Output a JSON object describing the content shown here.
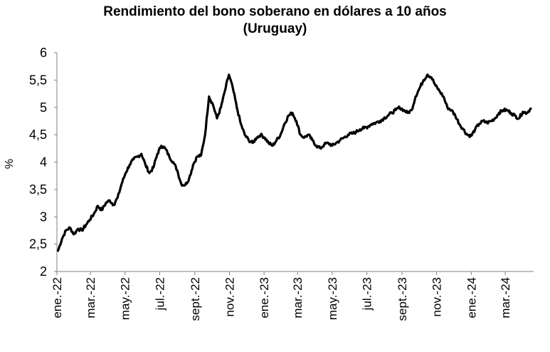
{
  "chart_data": {
    "type": "line",
    "title": "Rendimiento del bono soberano en dólares a 10 años",
    "subtitle": "(Uruguay)",
    "ylabel": "%",
    "xlabel": "",
    "ylim": [
      2,
      6
    ],
    "yticks": [
      "2",
      "2,5",
      "3",
      "3,5",
      "4",
      "4,5",
      "5",
      "5,5",
      "6"
    ],
    "xticks": [
      "ene.-22",
      "mar.-22",
      "may.-22",
      "jul.-22",
      "sept.-22",
      "nov.-22",
      "ene.-23",
      "mar.-23",
      "may.-23",
      "jul.-23",
      "sept.-23",
      "nov.-23",
      "ene.-24",
      "mar.-24"
    ],
    "xlim": [
      "2022-01-01",
      "2024-04-20"
    ],
    "grid": false,
    "legend": "none",
    "line_color": "#000000",
    "series": [
      {
        "x": [
          "2022-01-03",
          "2022-01-10",
          "2022-01-17",
          "2022-01-24",
          "2022-01-31",
          "2022-02-07",
          "2022-02-14",
          "2022-02-21",
          "2022-02-28",
          "2022-03-07",
          "2022-03-14",
          "2022-03-21",
          "2022-03-28",
          "2022-04-04",
          "2022-04-11",
          "2022-04-18",
          "2022-04-25",
          "2022-05-02",
          "2022-05-09",
          "2022-05-16",
          "2022-05-23",
          "2022-05-30",
          "2022-06-06",
          "2022-06-13",
          "2022-06-20",
          "2022-06-27",
          "2022-07-04",
          "2022-07-11",
          "2022-07-18",
          "2022-07-25",
          "2022-08-01",
          "2022-08-08",
          "2022-08-15",
          "2022-08-22",
          "2022-08-29",
          "2022-09-05",
          "2022-09-12",
          "2022-09-19",
          "2022-09-26",
          "2022-10-03",
          "2022-10-10",
          "2022-10-17",
          "2022-10-24",
          "2022-10-31",
          "2022-11-07",
          "2022-11-14",
          "2022-11-21",
          "2022-11-28",
          "2022-12-05",
          "2022-12-12",
          "2022-12-19",
          "2022-12-26",
          "2023-01-02",
          "2023-01-09",
          "2023-01-16",
          "2023-01-23",
          "2023-01-30",
          "2023-02-06",
          "2023-02-13",
          "2023-02-20",
          "2023-02-27",
          "2023-03-06",
          "2023-03-13",
          "2023-03-20",
          "2023-03-27",
          "2023-04-03",
          "2023-04-10",
          "2023-04-17",
          "2023-04-24",
          "2023-05-01",
          "2023-05-08",
          "2023-05-15",
          "2023-05-22",
          "2023-05-29",
          "2023-06-05",
          "2023-06-12",
          "2023-06-19",
          "2023-06-26",
          "2023-07-03",
          "2023-07-10",
          "2023-07-17",
          "2023-07-24",
          "2023-07-31",
          "2023-08-07",
          "2023-08-14",
          "2023-08-21",
          "2023-08-28",
          "2023-09-04",
          "2023-09-11",
          "2023-09-18",
          "2023-09-25",
          "2023-10-02",
          "2023-10-09",
          "2023-10-16",
          "2023-10-23",
          "2023-10-30",
          "2023-11-06",
          "2023-11-13",
          "2023-11-20",
          "2023-11-27",
          "2023-12-04",
          "2023-12-11",
          "2023-12-18",
          "2023-12-25",
          "2024-01-01",
          "2024-01-08",
          "2024-01-15",
          "2024-01-22",
          "2024-01-29",
          "2024-02-05",
          "2024-02-12",
          "2024-02-19",
          "2024-02-26",
          "2024-03-04",
          "2024-03-11",
          "2024-03-18",
          "2024-03-25",
          "2024-04-01",
          "2024-04-08",
          "2024-04-15"
        ],
        "values": [
          2.38,
          2.6,
          2.75,
          2.8,
          2.68,
          2.78,
          2.75,
          2.85,
          2.95,
          3.05,
          3.2,
          3.12,
          3.25,
          3.3,
          3.22,
          3.35,
          3.6,
          3.8,
          3.95,
          4.05,
          4.1,
          4.15,
          3.95,
          3.8,
          3.9,
          4.15,
          4.3,
          4.25,
          4.1,
          4.0,
          3.85,
          3.6,
          3.58,
          3.7,
          3.95,
          4.1,
          4.12,
          4.5,
          5.2,
          5.05,
          4.8,
          5.0,
          5.3,
          5.6,
          5.35,
          5.0,
          4.7,
          4.5,
          4.4,
          4.35,
          4.45,
          4.5,
          4.45,
          4.35,
          4.3,
          4.4,
          4.5,
          4.7,
          4.85,
          4.9,
          4.75,
          4.5,
          4.45,
          4.5,
          4.4,
          4.3,
          4.25,
          4.32,
          4.35,
          4.3,
          4.35,
          4.4,
          4.45,
          4.5,
          4.52,
          4.55,
          4.6,
          4.62,
          4.65,
          4.7,
          4.72,
          4.75,
          4.8,
          4.85,
          4.9,
          4.95,
          5.0,
          4.95,
          4.9,
          4.95,
          5.2,
          5.35,
          5.5,
          5.6,
          5.55,
          5.4,
          5.3,
          5.2,
          5.0,
          4.95,
          4.85,
          4.7,
          4.6,
          4.5,
          4.48,
          4.6,
          4.7,
          4.75,
          4.72,
          4.75,
          4.8,
          4.9,
          4.95,
          4.95,
          4.9,
          4.85,
          4.8,
          4.92,
          4.9,
          4.98
        ]
      }
    ]
  }
}
